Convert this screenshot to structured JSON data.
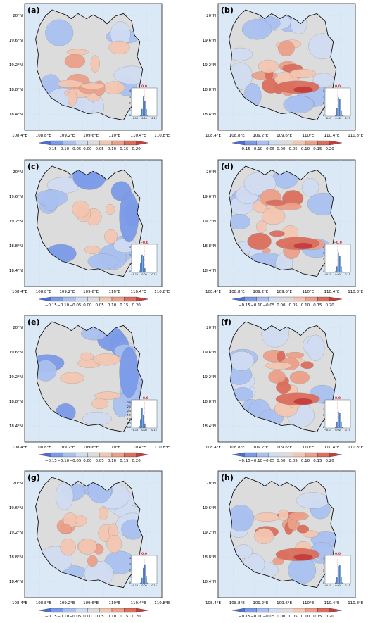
{
  "figure": {
    "lat_ticks": [
      "20°N",
      "19.6°N",
      "19.2°N",
      "18.8°N",
      "18.4°N"
    ],
    "lon_ticks": [
      "108.4°E",
      "108.8°E",
      "109.2°E",
      "109.6°E",
      "110°E",
      "110.4°E",
      "110.8°E"
    ],
    "colorbar_ticks": [
      "−0.15",
      "−0.10",
      "−0.05",
      "0.00",
      "0.05",
      "0.10",
      "0.15",
      "0.20"
    ],
    "colorbar_colors": [
      "#4a6fd6",
      "#7b9ae8",
      "#a9c0f0",
      "#d0dcf2",
      "#dcdcdc",
      "#f3c6b1",
      "#eba08a",
      "#dc6e5c",
      "#c83c3c"
    ],
    "sea_color": "#dbe9f6"
  },
  "panels": [
    {
      "label": "(a)",
      "inset_value": "0.0",
      "inset_yticks": [
        "4",
        "3",
        "2",
        "1",
        "0"
      ],
      "inset_xticks": [
        "−0.15",
        "0.00",
        "0.15"
      ],
      "bias": "mixed"
    },
    {
      "label": "(b)",
      "inset_value": "0.0",
      "inset_yticks": [
        "4",
        "3",
        "2",
        "1",
        "0"
      ],
      "inset_xticks": [
        "−0.15",
        "0.00",
        "0.15"
      ],
      "bias": "warm"
    },
    {
      "label": "(c)",
      "inset_value": "−0.0",
      "inset_yticks": [
        "3",
        "2",
        "1",
        "0"
      ],
      "inset_xticks": [
        "−0.15",
        "0.00",
        "0.15"
      ],
      "bias": "cool"
    },
    {
      "label": "(d)",
      "inset_value": "−0.0",
      "inset_yticks": [
        "4",
        "3",
        "2",
        "1",
        "0"
      ],
      "inset_xticks": [
        "−0.15",
        "0.00",
        "0.15"
      ],
      "bias": "warm"
    },
    {
      "label": "(e)",
      "inset_value": "−0.0",
      "inset_yticks": [
        "3.0",
        "2.5",
        "2.0",
        "1.5",
        "1.0",
        "0.5",
        "0.0"
      ],
      "inset_xticks": [
        "−0.15",
        "0.00",
        "0.15"
      ],
      "bias": "cool"
    },
    {
      "label": "(f)",
      "inset_value": "0.0",
      "inset_yticks": [
        "4",
        "3",
        "2",
        "1",
        "0"
      ],
      "inset_xticks": [
        "−0.15",
        "0.00",
        "0.15"
      ],
      "bias": "warm"
    },
    {
      "label": "(g)",
      "inset_value": "0.0",
      "inset_yticks": [
        "4",
        "3",
        "2",
        "1",
        "0"
      ],
      "inset_xticks": [
        "−0.15",
        "0.00",
        "0.15"
      ],
      "bias": "mixed"
    },
    {
      "label": "(h)",
      "inset_value": "0.0",
      "inset_yticks": [
        "4",
        "3",
        "2",
        "1",
        "0"
      ],
      "inset_xticks": [
        "−0.15",
        "0.00",
        "0.15"
      ],
      "bias": "warm"
    }
  ]
}
